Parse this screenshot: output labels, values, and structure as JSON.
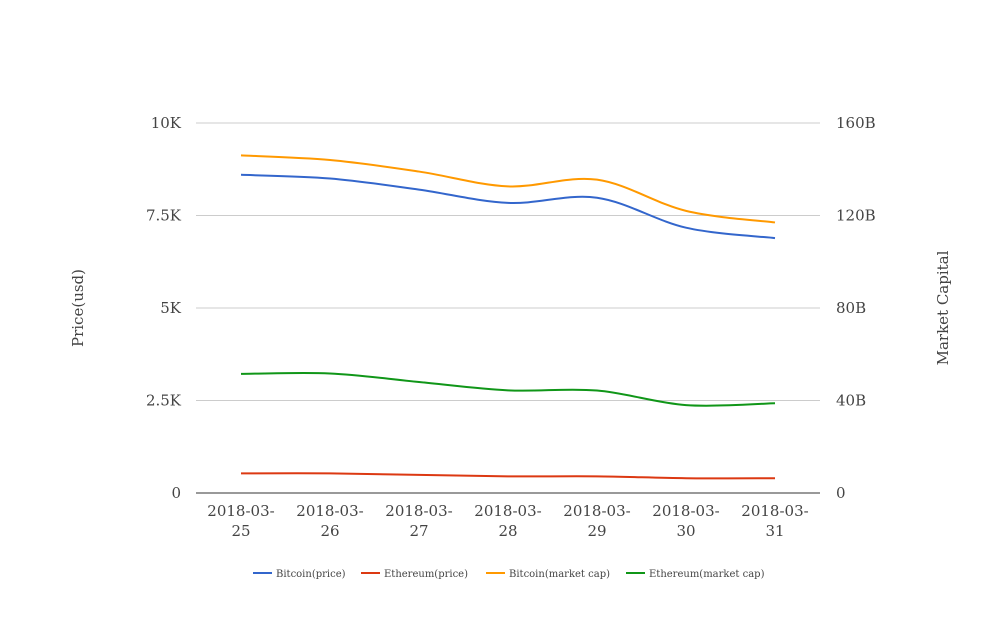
{
  "chart_data": {
    "type": "line",
    "title": "",
    "x": [
      "2018-03-25",
      "2018-03-26",
      "2018-03-27",
      "2018-03-28",
      "2018-03-29",
      "2018-03-30",
      "2018-03-31"
    ],
    "x_tick_labels": [
      [
        "2018-03-",
        "25"
      ],
      [
        "2018-03-",
        "26"
      ],
      [
        "2018-03-",
        "27"
      ],
      [
        "2018-03-",
        "28"
      ],
      [
        "2018-03-",
        "29"
      ],
      [
        "2018-03-",
        "30"
      ],
      [
        "2018-03-",
        "31"
      ]
    ],
    "y_left": {
      "label": "Price(usd)",
      "range": [
        0,
        10000
      ],
      "ticks": [
        0,
        2500,
        5000,
        7500,
        10000
      ],
      "tick_labels": [
        "0",
        "2.5K",
        "5K",
        "7.5K",
        "10K"
      ]
    },
    "y_right": {
      "label": "Market Capital",
      "range": [
        0,
        160000000000
      ],
      "ticks": [
        0,
        40000000000,
        80000000000,
        120000000000,
        160000000000
      ],
      "tick_labels": [
        "0",
        "40B",
        "80B",
        "120B",
        "160B"
      ]
    },
    "grid": true,
    "legend_position": "bottom",
    "series": [
      {
        "name": "Bitcoin(price)",
        "axis": "left",
        "color": "#3366cc",
        "values": [
          8600,
          8500,
          8200,
          7840,
          7980,
          7170,
          6890
        ]
      },
      {
        "name": "Ethereum(price)",
        "axis": "left",
        "color": "#dc3912",
        "values": [
          530,
          530,
          490,
          450,
          450,
          400,
          400
        ]
      },
      {
        "name": "Bitcoin(market cap)",
        "axis": "right",
        "color": "#ff9900",
        "values": [
          146000000000,
          144000000000,
          139000000000,
          132600000000,
          135500000000,
          122000000000,
          117000000000
        ]
      },
      {
        "name": "Ethereum(market cap)",
        "axis": "right",
        "color": "#109618",
        "values": [
          51500000000,
          51700000000,
          48000000000,
          44400000000,
          44300000000,
          38000000000,
          38800000000
        ]
      }
    ]
  }
}
